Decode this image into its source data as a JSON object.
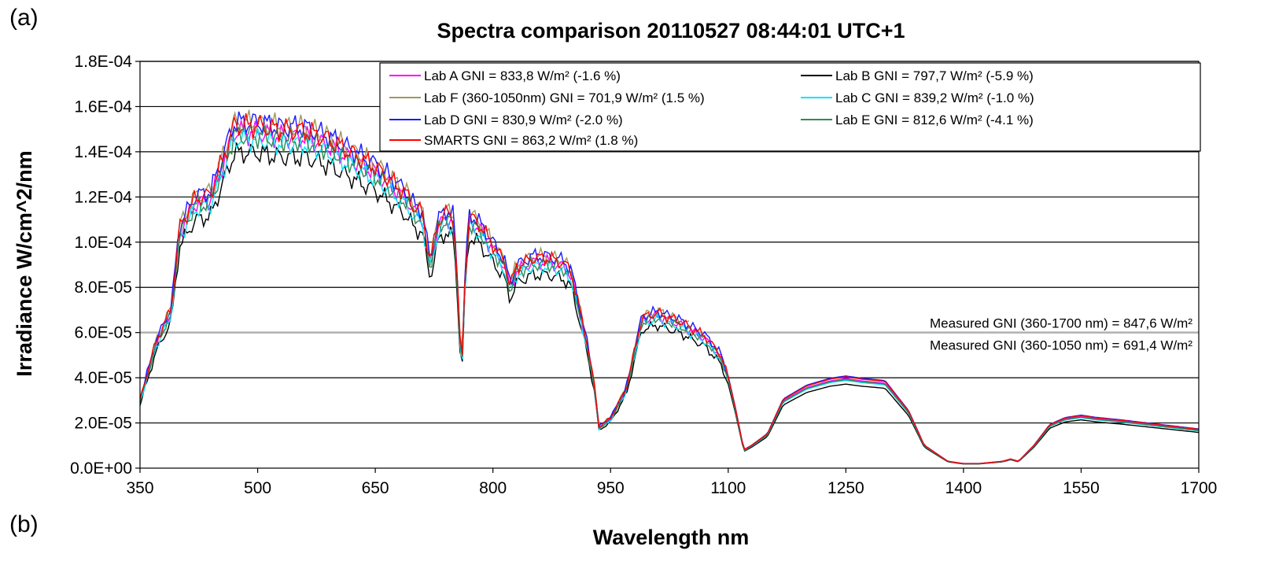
{
  "panel_labels": {
    "top": "(a)",
    "bottom": "(b)"
  },
  "chart_data": {
    "type": "line",
    "title": "Spectra comparison 20110527 08:44:01 UTC+1",
    "xlabel": "Wavelength nm",
    "ylabel": "Irradiance W/cm^2/nm",
    "xlim": [
      350,
      1700
    ],
    "ylim": [
      0,
      0.00018
    ],
    "x_ticks": [
      "350",
      "500",
      "650",
      "800",
      "950",
      "1100",
      "1250",
      "1400",
      "1550",
      "1700"
    ],
    "y_ticks": [
      "0.0E+00",
      "2.0E-05",
      "4.0E-05",
      "6.0E-05",
      "8.0E-05",
      "1.0E-04",
      "1.2E-04",
      "1.4E-04",
      "1.6E-04",
      "1.8E-04"
    ],
    "grid": "horizontal",
    "legend_position": "top",
    "reference_x": [
      350,
      370,
      390,
      400,
      420,
      440,
      470,
      500,
      530,
      560,
      590,
      620,
      650,
      670,
      690,
      700,
      710,
      720,
      730,
      740,
      750,
      755,
      760,
      765,
      770,
      780,
      800,
      815,
      822,
      830,
      850,
      870,
      890,
      900,
      920,
      930,
      935,
      950,
      970,
      990,
      1010,
      1040,
      1070,
      1090,
      1100,
      1110,
      1120,
      1130,
      1150,
      1170,
      1200,
      1230,
      1250,
      1270,
      1300,
      1330,
      1350,
      1380,
      1400,
      1420,
      1450,
      1460,
      1470,
      1490,
      1510,
      1530,
      1550,
      1570,
      1600,
      1650,
      1700
    ],
    "reference_y": [
      3e-05,
      5.5e-05,
      7e-05,
      0.000105,
      0.000118,
      0.00012,
      0.00015,
      0.00015,
      0.000148,
      0.000148,
      0.000144,
      0.000138,
      0.000132,
      0.000126,
      0.00012,
      0.000114,
      0.000112,
      9e-05,
      0.000108,
      0.000112,
      0.00011,
      8e-05,
      4e-05,
      9e-05,
      0.00011,
      0.000108,
      9.8e-05,
      9e-05,
      8e-05,
      8.8e-05,
      9.2e-05,
      9.2e-05,
      9e-05,
      8.6e-05,
      5.5e-05,
      3.5e-05,
      1.8e-05,
      2.2e-05,
      3.5e-05,
      6.6e-05,
      6.8e-05,
      6.4e-05,
      5.8e-05,
      5e-05,
      4e-05,
      2.5e-05,
      8e-06,
      1e-05,
      1.5e-05,
      3e-05,
      3.6e-05,
      3.9e-05,
      4e-05,
      3.9e-05,
      3.8e-05,
      2.5e-05,
      1e-05,
      3e-06,
      2e-06,
      2e-06,
      3e-06,
      4e-06,
      3e-06,
      1e-05,
      1.9e-05,
      2.2e-05,
      2.3e-05,
      2.2e-05,
      2.1e-05,
      1.9e-05,
      1.7e-05
    ],
    "series": [
      {
        "name": "Lab A GNI = 833,8 W/m² (-1.6 %)",
        "color": "#ff00ff",
        "scale": 0.99,
        "x_range": [
          350,
          1700
        ]
      },
      {
        "name": "Lab B GNI = 797,7 W/m² (-5.9 %)",
        "color": "#000000",
        "scale": 0.93,
        "x_range": [
          350,
          1700
        ]
      },
      {
        "name": "Lab F (360-1050nm) GNI = 701,9 W/m² (1.5 %)",
        "color": "#9e9a5a",
        "scale": 1.02,
        "x_range": [
          360,
          1050
        ]
      },
      {
        "name": "Lab C GNI = 839,2 W/m² (-1.0 %)",
        "color": "#00e5ff",
        "scale": 0.97,
        "x_range": [
          350,
          1700
        ]
      },
      {
        "name": "Lab D GNI = 830,9 W/m² (-2.0 %)",
        "color": "#1a1aff",
        "scale": 1.02,
        "x_range": [
          350,
          1700
        ]
      },
      {
        "name": "Lab E GNI = 812,6 W/m² (-4.1 %)",
        "color": "#2e8b57",
        "scale": 0.98,
        "x_range": [
          350,
          1700
        ]
      },
      {
        "name": "SMARTS GNI = 863,2 W/m² (1.8 %)",
        "color": "#ff0000",
        "scale": 1.01,
        "x_range": [
          350,
          1700
        ]
      }
    ],
    "annotations": [
      {
        "text": "Measured GNI (360-1700 nm) = 847,6 W/m²",
        "y": 6e-05
      },
      {
        "text": "Measured GNI (360-1050 nm) = 691,4 W/m²",
        "y": 6e-05
      }
    ]
  }
}
